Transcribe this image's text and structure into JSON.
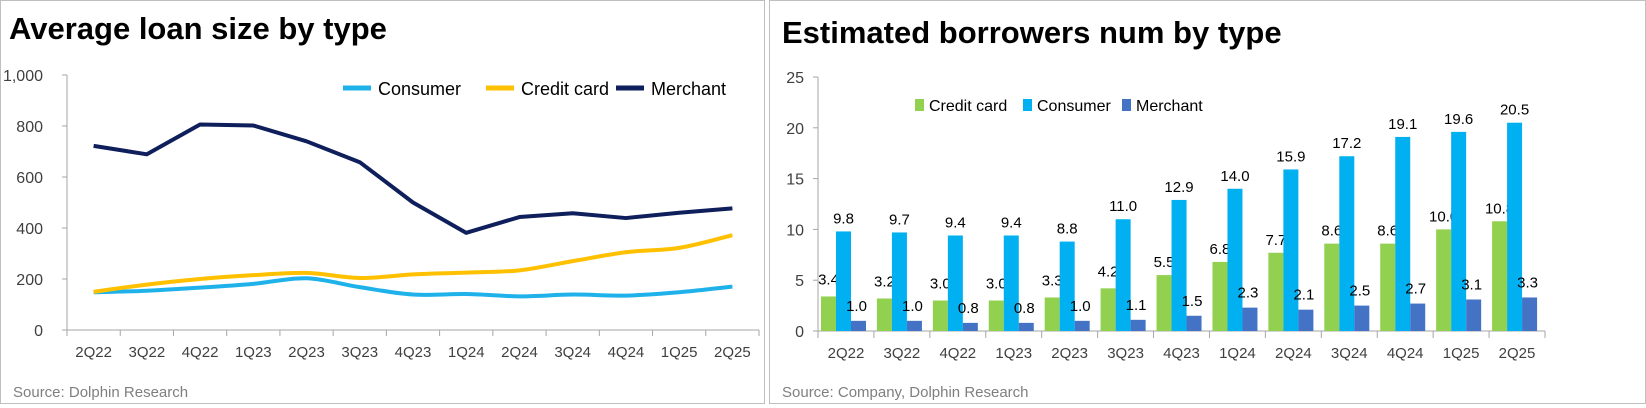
{
  "chart_data": [
    {
      "type": "line",
      "title": "Average loan size by type",
      "source": "Source: Dolphin Research",
      "categories": [
        "2Q22",
        "3Q22",
        "4Q22",
        "1Q23",
        "2Q23",
        "3Q23",
        "4Q23",
        "1Q24",
        "2Q24",
        "3Q24",
        "4Q24",
        "1Q25",
        "2Q25"
      ],
      "ylim": [
        0,
        1000
      ],
      "yticks": [
        0,
        200,
        400,
        600,
        800,
        1000
      ],
      "ytick_labels": [
        "0",
        "200",
        "400",
        "600",
        "800",
        "1,000"
      ],
      "legend": "top-right",
      "series": [
        {
          "name": "Consumer",
          "color": "#1fb2ea",
          "values": [
            148,
            154,
            166,
            181,
            203,
            168,
            139,
            141,
            132,
            139,
            135,
            148,
            170
          ]
        },
        {
          "name": "Credit card",
          "color": "#ffc000",
          "values": [
            150,
            178,
            200,
            215,
            224,
            204,
            218,
            225,
            234,
            270,
            305,
            322,
            372
          ]
        },
        {
          "name": "Merchant",
          "color": "#0f1f5c",
          "values": [
            722,
            689,
            806,
            802,
            740,
            658,
            500,
            381,
            443,
            458,
            439,
            460,
            477
          ]
        }
      ]
    },
    {
      "type": "bar",
      "title": "Estimated borrowers num by type",
      "source": "Source: Company, Dolphin Research",
      "categories": [
        "2Q22",
        "3Q22",
        "4Q22",
        "1Q23",
        "2Q23",
        "3Q23",
        "4Q23",
        "1Q24",
        "2Q24",
        "3Q24",
        "4Q24",
        "1Q25",
        "2Q25"
      ],
      "ylim": [
        0,
        25
      ],
      "yticks": [
        0,
        5,
        10,
        15,
        20,
        25
      ],
      "ytick_labels": [
        "0",
        "5",
        "10",
        "15",
        "20",
        "25"
      ],
      "legend": "top-left",
      "series": [
        {
          "name": "Credit card",
          "color": "#92d050",
          "values": [
            3.4,
            3.2,
            3.0,
            3.0,
            3.3,
            4.2,
            5.5,
            6.8,
            7.7,
            8.6,
            8.6,
            10.0,
            10.8
          ],
          "labels": [
            "3.4",
            "3.2",
            "3.0",
            "3.0",
            "3.3",
            "4.2",
            "5.5",
            "6.8",
            "7.7",
            "8.6",
            "8.6",
            "10.0",
            "10.8"
          ]
        },
        {
          "name": "Consumer",
          "color": "#00b0f0",
          "values": [
            9.8,
            9.7,
            9.4,
            9.4,
            8.8,
            11.0,
            12.9,
            14.0,
            15.9,
            17.2,
            19.1,
            19.6,
            20.5
          ],
          "labels": [
            "9.8",
            "9.7",
            "9.4",
            "9.4",
            "8.8",
            "11.0",
            "12.9",
            "14.0",
            "15.9",
            "17.2",
            "19.1",
            "19.6",
            "20.5"
          ]
        },
        {
          "name": "Merchant",
          "color": "#4472c4",
          "values": [
            1.0,
            1.0,
            0.8,
            0.8,
            1.0,
            1.1,
            1.5,
            2.3,
            2.1,
            2.5,
            2.7,
            3.1,
            3.3
          ],
          "labels": [
            "1.0",
            "1.0",
            "0.8",
            "0.8",
            "1.0",
            "1.1",
            "1.5",
            "2.3",
            "2.1",
            "2.5",
            "2.7",
            "3.1",
            "3.3"
          ]
        }
      ]
    }
  ]
}
